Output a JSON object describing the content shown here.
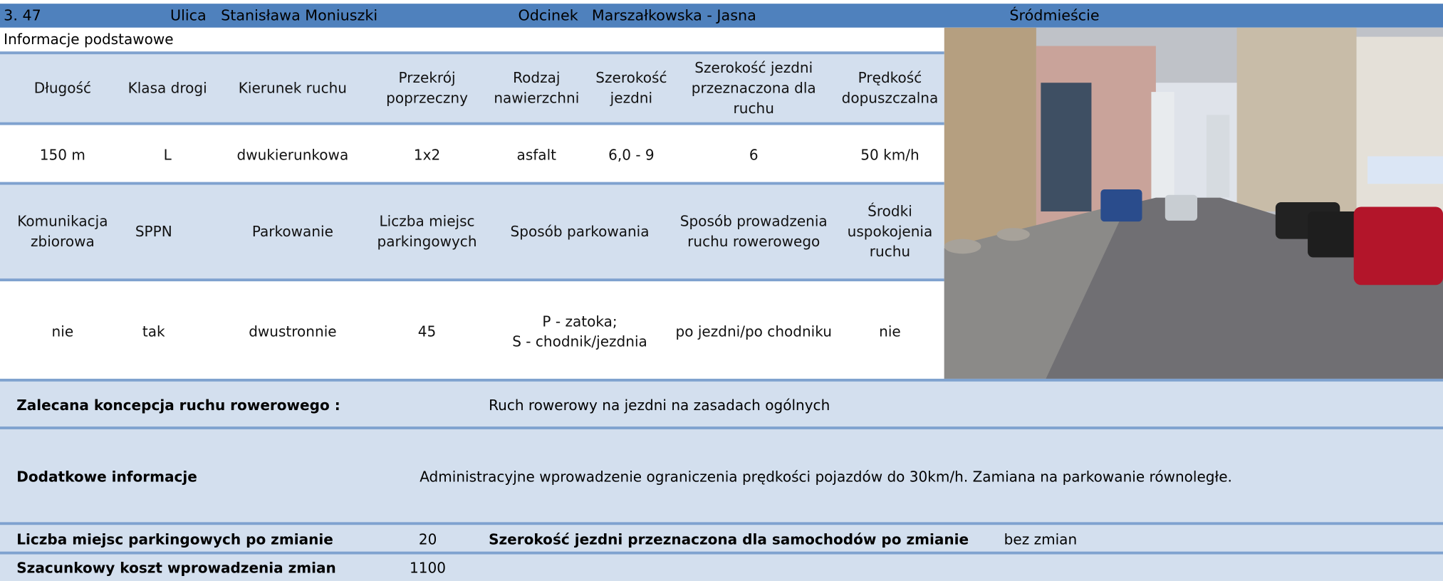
{
  "header": {
    "number": "3. 47",
    "street_label": "Ulica",
    "street": "Stanisława Moniuszki",
    "section_label": "Odcinek",
    "section": "Marszałkowska - Jasna",
    "district": "Śródmieście"
  },
  "section_title": "Informacje podstawowe",
  "table1": {
    "headers": [
      "Długość",
      "Klasa drogi",
      "Kierunek ruchu",
      "Przekrój poprzeczny",
      "Rodzaj nawierzchni",
      "Szerokość jezdni",
      "Szerokość jezdni przeznaczona dla ruchu",
      "Prędkość dopuszczalna"
    ],
    "values": [
      "150 m",
      "L",
      "dwukierunkowa",
      "1x2",
      "asfalt",
      "6,0 - 9",
      "6",
      "50 km/h"
    ]
  },
  "table2": {
    "headers": [
      "Komunikacja zbiorowa",
      "SPPN",
      "Parkowanie",
      "Liczba miejsc parkingowych",
      "Sposób parkowania",
      "Sposób prowadzenia ruchu rowerowego",
      "Środki uspokojenia ruchu"
    ],
    "values": [
      "nie",
      "tak",
      "dwustronnie",
      "45",
      "P - zatoka;\nS - chodnik/jezdnia",
      "po jezdni/po chodniku",
      "nie"
    ]
  },
  "summary": {
    "bike_concept_label": "Zalecana koncepcja ruchu rowerowego :",
    "bike_concept": "Ruch rowerowy na jezdni na zasadach ogólnych",
    "extra_label": "Dodatkowe informacje",
    "extra": "Administracyjne wprowadzenie ograniczenia prędkości pojazdów do 30km/h. Zamiana na parkowanie równoległe.",
    "parking_after_label": "Liczba miejsc parkingowych po zmianie",
    "parking_after": "20",
    "width_after_label": "Szerokość jezdni przeznaczona dla samochodów po zmianie",
    "width_after": "bez zmian",
    "cost_label": "Szacunkowy koszt wprowadzenia zmian",
    "cost": "1100"
  }
}
